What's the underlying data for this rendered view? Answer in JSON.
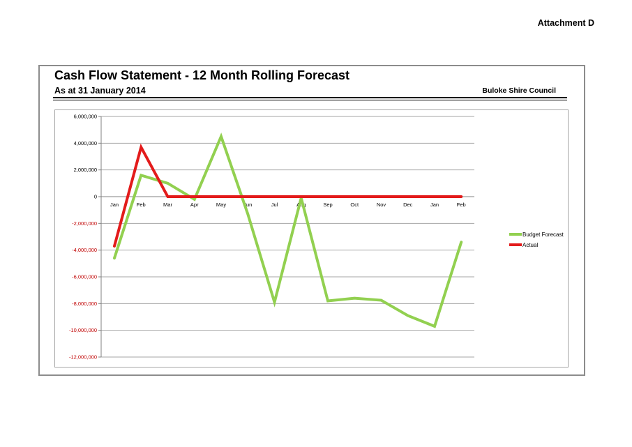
{
  "header": {
    "attachment": "Attachment D",
    "title": "Cash Flow Statement - 12 Month Rolling Forecast",
    "subtitle": "As at 31 January 2014",
    "organization": "Buloke Shire Council"
  },
  "chart_data": {
    "type": "line",
    "title": "",
    "xlabel": "",
    "ylabel": "",
    "categories": [
      "Jan",
      "Feb",
      "Mar",
      "Apr",
      "May",
      "Jun",
      "Jul",
      "Aug",
      "Sep",
      "Oct",
      "Nov",
      "Dec",
      "Jan",
      "Feb"
    ],
    "ylim": [
      -12000000,
      6000000
    ],
    "ytick_values": [
      6000000,
      4000000,
      2000000,
      0,
      -2000000,
      -4000000,
      -6000000,
      -8000000,
      -10000000,
      -12000000
    ],
    "ytick_labels": [
      "6,000,000",
      "4,000,000",
      "2,000,000",
      "0",
      "-2,000,000",
      "-4,000,000",
      "-6,000,000",
      "-8,000,000",
      "-10,000,000",
      "-12,000,000"
    ],
    "grid": true,
    "legend_position": "right",
    "series": [
      {
        "name": "Budget Forecast",
        "color": "#92d050",
        "values": [
          -4600000,
          1600000,
          1000000,
          -200000,
          4500000,
          -1300000,
          -7900000,
          -100000,
          -7800000,
          -7600000,
          -7750000,
          -8900000,
          -9700000,
          -3400000
        ]
      },
      {
        "name": "Actual",
        "color": "#e31b1b",
        "values": [
          -3700000,
          3700000,
          0,
          0,
          0,
          0,
          0,
          0,
          0,
          0,
          0,
          0,
          0,
          0
        ]
      }
    ],
    "colors": {
      "positive_tick": "#000000",
      "negative_tick": "#c00000",
      "grid": "#a6a6a6"
    }
  }
}
